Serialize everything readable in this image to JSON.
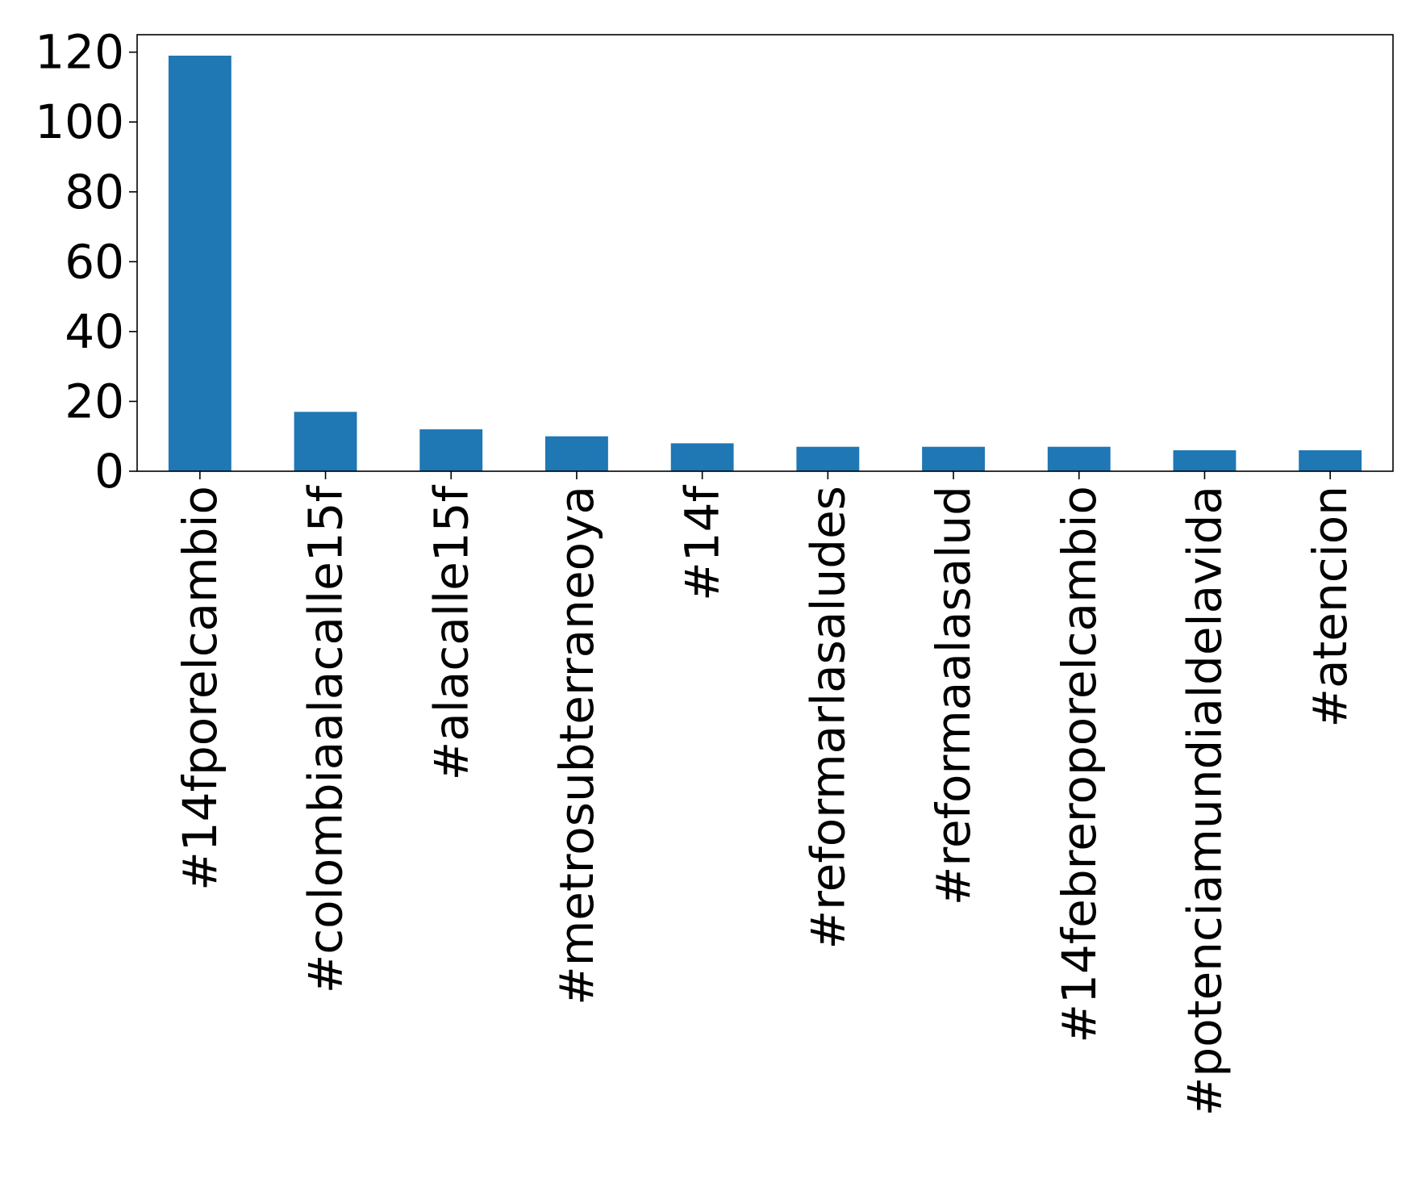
{
  "chart_data": {
    "type": "bar",
    "title": "",
    "xlabel": "",
    "ylabel": "",
    "categories": [
      "#14fporelcambio",
      "#colombiaalacalle15f",
      "#alacalle15f",
      "#metrosubterraneoya",
      "#14f",
      "#reformarlasaludes",
      "#reformaalasalud",
      "#14febreroporelcambio",
      "#potenciamundialdelavida",
      "#atencion"
    ],
    "values": [
      119,
      17,
      12,
      10,
      8,
      7,
      7,
      7,
      6,
      6
    ],
    "ylim": [
      0,
      125
    ],
    "yticks": [
      0,
      20,
      40,
      60,
      80,
      100,
      120
    ],
    "bar_color": "#1f77b4",
    "grid": false,
    "legend": "none"
  }
}
